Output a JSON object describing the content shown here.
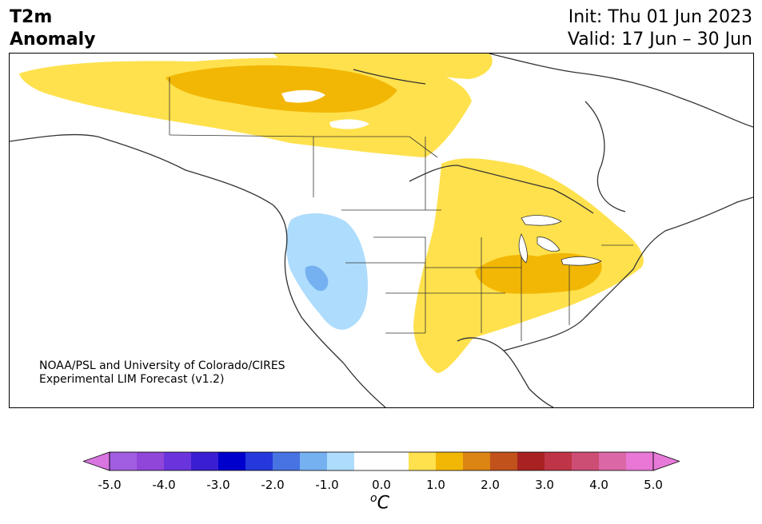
{
  "header": {
    "title_line1": "T2m",
    "title_line2": "Anomaly",
    "init_label": "Init: Thu 01 Jun 2023",
    "valid_label": "Valid: 17 Jun – 30 Jun"
  },
  "credit": {
    "line1": "NOAA/PSL and University of Colorado/CIRES",
    "line2": "Experimental LIM Forecast (v1.2)"
  },
  "colorbar": {
    "unit_symbol": "o",
    "unit_letter": "C",
    "tick_labels": [
      "-5.0",
      "-4.0",
      "-3.0",
      "-2.0",
      "-1.0",
      "0.0",
      "1.0",
      "2.0",
      "3.0",
      "4.0",
      "5.0"
    ],
    "bins": [
      {
        "from": -5.0,
        "to": -4.5,
        "color": "#a25ee2"
      },
      {
        "from": -4.5,
        "to": -4.0,
        "color": "#9046d8"
      },
      {
        "from": -4.0,
        "to": -3.5,
        "color": "#6a34dc"
      },
      {
        "from": -3.5,
        "to": -3.0,
        "color": "#3a1fd2"
      },
      {
        "from": -3.0,
        "to": -2.5,
        "color": "#0000cd"
      },
      {
        "from": -2.5,
        "to": -2.0,
        "color": "#2538dc"
      },
      {
        "from": -2.0,
        "to": -1.5,
        "color": "#4873e2"
      },
      {
        "from": -1.5,
        "to": -1.0,
        "color": "#75b1f1"
      },
      {
        "from": -1.0,
        "to": -0.5,
        "color": "#aedcfd"
      },
      {
        "from": -0.5,
        "to": 0.0,
        "color": "#ffffff"
      },
      {
        "from": 0.0,
        "to": 0.5,
        "color": "#ffffff"
      },
      {
        "from": 0.5,
        "to": 1.0,
        "color": "#ffe14d"
      },
      {
        "from": 1.0,
        "to": 1.5,
        "color": "#f2b705"
      },
      {
        "from": 1.5,
        "to": 2.0,
        "color": "#dc8414"
      },
      {
        "from": 2.0,
        "to": 2.5,
        "color": "#c2521b"
      },
      {
        "from": 2.5,
        "to": 3.0,
        "color": "#a82222"
      },
      {
        "from": 3.0,
        "to": 3.5,
        "color": "#bf3547"
      },
      {
        "from": 3.5,
        "to": 4.0,
        "color": "#cd4e75"
      },
      {
        "from": 4.0,
        "to": 4.5,
        "color": "#dc67a6"
      },
      {
        "from": 4.5,
        "to": 5.0,
        "color": "#e877d6"
      }
    ],
    "under_color": "#d875e0",
    "over_color": "#e77ad8"
  }
}
